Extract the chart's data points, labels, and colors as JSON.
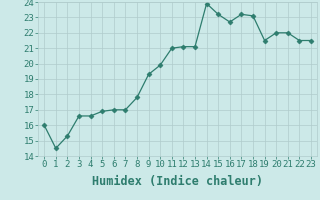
{
  "xlabel": "Humidex (Indice chaleur)",
  "x": [
    0,
    1,
    2,
    3,
    4,
    5,
    6,
    7,
    8,
    9,
    10,
    11,
    12,
    13,
    14,
    15,
    16,
    17,
    18,
    19,
    20,
    21,
    22,
    23
  ],
  "y": [
    16.0,
    14.5,
    15.3,
    16.6,
    16.6,
    16.9,
    17.0,
    17.0,
    17.8,
    19.3,
    19.9,
    21.0,
    21.1,
    21.1,
    23.9,
    23.2,
    22.7,
    23.2,
    23.1,
    21.5,
    22.0,
    22.0,
    21.5,
    21.5
  ],
  "line_color": "#2e7d6e",
  "marker": "D",
  "marker_size": 2.5,
  "bg_color": "#cce9e8",
  "grid_color": "#b0cccc",
  "ylim": [
    14,
    24
  ],
  "xlim": [
    -0.5,
    23.5
  ],
  "yticks": [
    14,
    15,
    16,
    17,
    18,
    19,
    20,
    21,
    22,
    23,
    24
  ],
  "xticks": [
    0,
    1,
    2,
    3,
    4,
    5,
    6,
    7,
    8,
    9,
    10,
    11,
    12,
    13,
    14,
    15,
    16,
    17,
    18,
    19,
    20,
    21,
    22,
    23
  ],
  "tick_fontsize": 6.5,
  "xlabel_fontsize": 8.5,
  "tick_color": "#2e7d6e"
}
